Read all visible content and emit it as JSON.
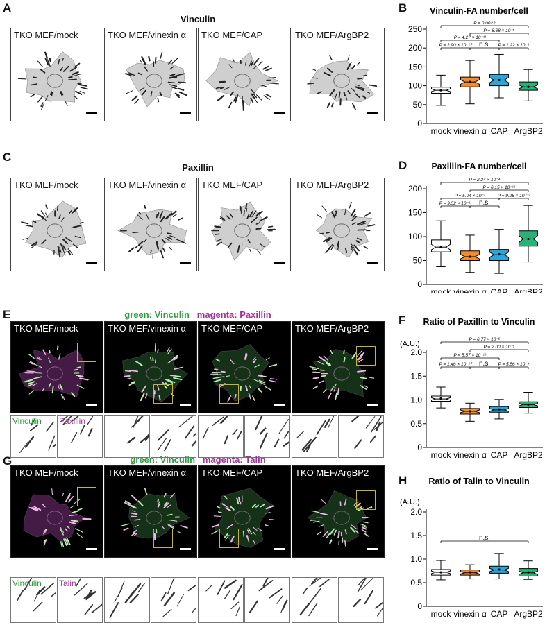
{
  "panel_letters": [
    "A",
    "B",
    "C",
    "D",
    "E",
    "F",
    "G",
    "H"
  ],
  "rows": {
    "A": {
      "title": "Vinculin",
      "style": "light",
      "panels": [
        "TKO MEF/mock",
        "TKO MEF/vinexin α",
        "TKO MEF/CAP",
        "TKO MEF/ArgBP2"
      ]
    },
    "C": {
      "title": "Paxillin",
      "style": "light",
      "panels": [
        "TKO MEF/mock",
        "TKO MEF/vinexin α",
        "TKO MEF/CAP",
        "TKO MEF/ArgBP2"
      ]
    },
    "E": {
      "title_green": "green: Vinculin",
      "title_magenta": "magenta: Paxillin",
      "style": "dark",
      "panels": [
        "TKO MEF/mock",
        "TKO MEF/vinexin α",
        "TKO MEF/CAP",
        "TKO MEF/ArgBP2"
      ],
      "inset_labels": {
        "green": "Vinculin",
        "magenta": "Paxillin"
      }
    },
    "G": {
      "title_green": "green: Vinculin",
      "title_magenta": "magenta: Talin",
      "style": "dark",
      "panels": [
        "TKO MEF/mock",
        "TKO MEF/vinexin α",
        "TKO MEF/CAP",
        "TKO MEF/ArgBP2"
      ],
      "inset_labels": {
        "green": "Vinculin",
        "magenta": "Talin"
      }
    }
  },
  "colors": {
    "green_label": "#2e9e3e",
    "magenta_label": "#a0329a",
    "mock": "#ffffff",
    "vinexin": "#f28a2e",
    "cap": "#2aa6d8",
    "argbp2": "#2bb07a"
  },
  "chart_data": [
    {
      "id": "B",
      "type": "box",
      "title": "Vinculin-FA number/cell",
      "ylabel": "",
      "categories": [
        "mock",
        "vinexin α",
        "CAP",
        "ArgBP2"
      ],
      "ylim": [
        0,
        250
      ],
      "yticks": [
        0,
        50,
        100,
        150,
        200,
        250
      ],
      "boxes": [
        {
          "min": 48,
          "q1": 80,
          "median": 88,
          "q3": 96,
          "max": 128,
          "mean": 88
        },
        {
          "min": 52,
          "q1": 97,
          "median": 110,
          "q3": 123,
          "max": 167,
          "mean": 110
        },
        {
          "min": 68,
          "q1": 100,
          "median": 115,
          "q3": 130,
          "max": 183,
          "mean": 115
        },
        {
          "min": 60,
          "q1": 88,
          "median": 97,
          "q3": 110,
          "max": 143,
          "mean": 97
        }
      ],
      "comparisons": [
        {
          "from": 0,
          "to": 3,
          "label": "P = 0.0022"
        },
        {
          "from": 1,
          "to": 3,
          "label": "P = 6.68 × 10⁻⁶"
        },
        {
          "from": 0,
          "to": 2,
          "label": "P = 4.27 × 10⁻¹¹"
        },
        {
          "from": 0,
          "to": 1,
          "label": "P = 2.90 × 10⁻¹⁰"
        },
        {
          "from": 1,
          "to": 2,
          "label": "n.s."
        },
        {
          "from": 2,
          "to": 3,
          "label": "P = 1.22 × 10⁻⁵"
        }
      ]
    },
    {
      "id": "D",
      "type": "box",
      "title": "Paxillin-FA number/cell",
      "ylabel": "",
      "categories": [
        "mock",
        "vinexin α",
        "CAP",
        "ArgBP2"
      ],
      "ylim": [
        0,
        200
      ],
      "yticks": [
        0,
        50,
        100,
        150,
        200
      ],
      "boxes": [
        {
          "min": 37,
          "q1": 68,
          "median": 78,
          "q3": 93,
          "max": 133,
          "mean": 78
        },
        {
          "min": 25,
          "q1": 50,
          "median": 58,
          "q3": 70,
          "max": 103,
          "mean": 58
        },
        {
          "min": 23,
          "q1": 50,
          "median": 62,
          "q3": 73,
          "max": 115,
          "mean": 63
        },
        {
          "min": 47,
          "q1": 80,
          "median": 95,
          "q3": 112,
          "max": 165,
          "mean": 95
        }
      ],
      "comparisons": [
        {
          "from": 0,
          "to": 3,
          "label": "P = 2.24 × 10⁻⁴"
        },
        {
          "from": 1,
          "to": 3,
          "label": "P = 6.15 × 10⁻¹⁶"
        },
        {
          "from": 0,
          "to": 2,
          "label": "P = 5.04 × 10⁻⁷"
        },
        {
          "from": 2,
          "to": 3,
          "label": "P = 9.26 × 10⁻¹³"
        },
        {
          "from": 0,
          "to": 1,
          "label": "P = 9.52 × 10⁻¹¹"
        },
        {
          "from": 1,
          "to": 2,
          "label": "n.s."
        }
      ]
    },
    {
      "id": "F",
      "type": "box",
      "title": "Ratio of Paxillin to Vinculin",
      "ylabel": "(A.U.)",
      "categories": [
        "mock",
        "vinexin α",
        "CAP",
        "ArgBP2"
      ],
      "ylim": [
        0,
        2.0
      ],
      "yticks": [
        0,
        0.5,
        1.0,
        1.5,
        2.0
      ],
      "boxes": [
        {
          "min": 0.83,
          "q1": 0.97,
          "median": 1.02,
          "q3": 1.08,
          "max": 1.27,
          "mean": 1.03
        },
        {
          "min": 0.55,
          "q1": 0.7,
          "median": 0.76,
          "q3": 0.82,
          "max": 0.93,
          "mean": 0.76
        },
        {
          "min": 0.6,
          "q1": 0.74,
          "median": 0.79,
          "q3": 0.86,
          "max": 1.01,
          "mean": 0.8
        },
        {
          "min": 0.72,
          "q1": 0.84,
          "median": 0.9,
          "q3": 0.96,
          "max": 1.16,
          "mean": 0.9
        }
      ],
      "comparisons": [
        {
          "from": 0,
          "to": 3,
          "label": "P = 6.77 × 10⁻⁵"
        },
        {
          "from": 1,
          "to": 3,
          "label": "P = 2.00 × 10⁻⁵"
        },
        {
          "from": 0,
          "to": 2,
          "label": "P = 5.57 × 10⁻¹⁶"
        },
        {
          "from": 0,
          "to": 1,
          "label": "P = 1.46 × 10⁻²⁰"
        },
        {
          "from": 1,
          "to": 2,
          "label": "n.s."
        },
        {
          "from": 2,
          "to": 3,
          "label": "P = 5.56 × 10⁻⁴"
        }
      ]
    },
    {
      "id": "H",
      "type": "box",
      "title": "Ratio of Talin to Vinculin",
      "ylabel": "(A.U.)",
      "categories": [
        "mock",
        "vinexin α",
        "CAP",
        "ArgBP2"
      ],
      "ylim": [
        0,
        2.0
      ],
      "yticks": [
        0,
        0.5,
        1.0,
        1.5,
        2.0
      ],
      "boxes": [
        {
          "min": 0.56,
          "q1": 0.66,
          "median": 0.72,
          "q3": 0.78,
          "max": 0.97,
          "mean": 0.72
        },
        {
          "min": 0.58,
          "q1": 0.66,
          "median": 0.71,
          "q3": 0.77,
          "max": 0.88,
          "mean": 0.72
        },
        {
          "min": 0.58,
          "q1": 0.7,
          "median": 0.77,
          "q3": 0.85,
          "max": 1.12,
          "mean": 0.78
        },
        {
          "min": 0.57,
          "q1": 0.64,
          "median": 0.71,
          "q3": 0.8,
          "max": 0.96,
          "mean": 0.72
        }
      ],
      "comparisons": [
        {
          "from": 0,
          "to": 3,
          "label": "n.s."
        }
      ]
    }
  ]
}
